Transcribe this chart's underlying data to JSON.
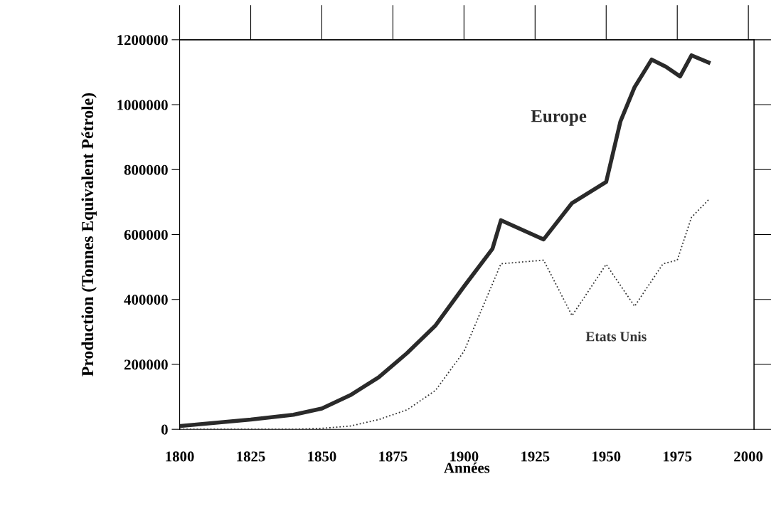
{
  "chart_data": {
    "type": "line",
    "xlabel": "Années",
    "ylabel": "Production (Tonnes Equivalent Pétrole)",
    "xlim": [
      1800,
      2002
    ],
    "xticks": [
      1800,
      1825,
      1850,
      1875,
      1900,
      1925,
      1950,
      1975,
      2000
    ],
    "ylim": [
      0,
      1200000
    ],
    "yticks": [
      0,
      200000,
      400000,
      600000,
      800000,
      1000000,
      1200000
    ],
    "grid": false,
    "legend": false,
    "marker": "none",
    "series": [
      {
        "name": "Europe",
        "color": "#2a2a2a",
        "line_style": "solid",
        "x": [
          1800,
          1825,
          1840,
          1850,
          1860,
          1870,
          1880,
          1890,
          1900,
          1910,
          1913,
          1928,
          1938,
          1950,
          1955,
          1960,
          1966,
          1971,
          1976,
          1980,
          1986
        ],
        "values": [
          10000,
          30000,
          45000,
          64000,
          105000,
          160000,
          235000,
          320000,
          440000,
          556000,
          644000,
          585000,
          697000,
          762000,
          948000,
          1054000,
          1139000,
          1117000,
          1087000,
          1152000,
          1130000
        ]
      },
      {
        "name": "Etats Unis",
        "color": "#333333",
        "line_style": "dotted",
        "x": [
          1800,
          1840,
          1850,
          1860,
          1870,
          1880,
          1890,
          1900,
          1913,
          1928,
          1938,
          1950,
          1960,
          1970,
          1975,
          1980,
          1986
        ],
        "values": [
          0,
          0,
          3000,
          10000,
          30000,
          60000,
          120000,
          240000,
          510000,
          521000,
          350000,
          508000,
          379000,
          510000,
          521000,
          653000,
          707000
        ]
      }
    ]
  }
}
